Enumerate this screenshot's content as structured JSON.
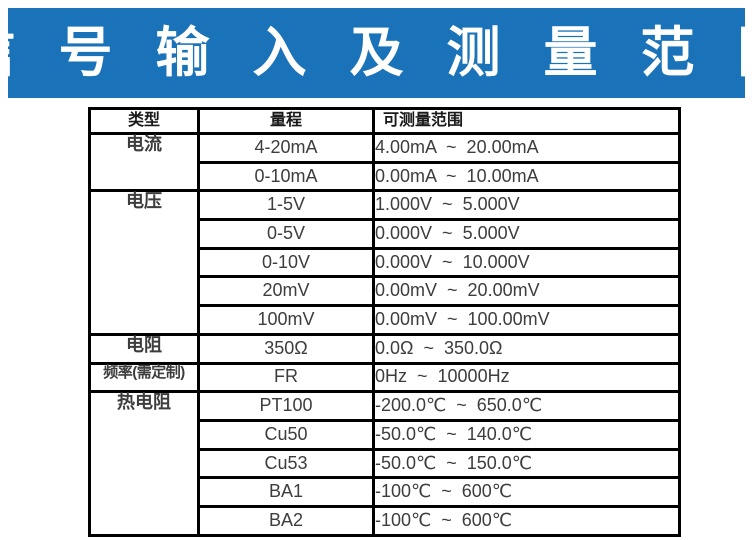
{
  "banner": {
    "title": "信 号 输 入 及 测 量 范 围",
    "bg_color": "#1a72b8",
    "text_color": "#ffffff"
  },
  "table": {
    "headers": [
      "类型",
      "量程",
      "可测量范围"
    ],
    "rows": [
      {
        "type": "电流",
        "type_span": 2,
        "range": "4-20mA",
        "measurable": "4.00mA  ~  20.00mA"
      },
      {
        "range": "0-10mA",
        "measurable": "0.00mA  ~  10.00mA"
      },
      {
        "type": "电压",
        "type_span": 5,
        "range": "1-5V",
        "measurable": "1.000V  ~  5.000V"
      },
      {
        "range": "0-5V",
        "measurable": "0.000V  ~  5.000V"
      },
      {
        "range": "0-10V",
        "measurable": "0.000V  ~  10.000V"
      },
      {
        "range": "20mV",
        "measurable": "0.00mV  ~  20.00mV"
      },
      {
        "range": "100mV",
        "measurable": "0.00mV  ~  100.00mV"
      },
      {
        "type": "电阻",
        "type_span": 1,
        "range": "350Ω",
        "measurable": "0.0Ω  ~  350.0Ω"
      },
      {
        "type": "频率(需定制)",
        "type_span": 1,
        "range": "FR",
        "measurable": "0Hz  ~  10000Hz"
      },
      {
        "type": "热电阻",
        "type_span": 5,
        "range": "PT100",
        "measurable": "-200.0℃  ~  650.0℃"
      },
      {
        "range": "Cu50",
        "measurable": "-50.0℃  ~  140.0℃"
      },
      {
        "range": "Cu53",
        "measurable": "-50.0℃  ~  150.0℃"
      },
      {
        "range": "BA1",
        "measurable": "-100℃  ~  600℃"
      },
      {
        "range": "BA2",
        "measurable": "-100℃  ~  600℃"
      }
    ],
    "border_color": "#000000"
  }
}
